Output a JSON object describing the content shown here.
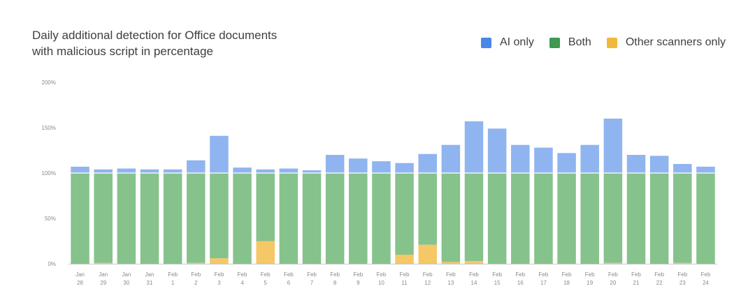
{
  "chart_data": {
    "type": "bar",
    "stacked": true,
    "title_lines": [
      "Daily additional detection for Office documents",
      "with malicious script in percentage"
    ],
    "xlabel": "",
    "ylabel": "",
    "ylim": [
      0,
      200
    ],
    "y_ticks": [
      "0%",
      "50%",
      "100%",
      "150%",
      "200%"
    ],
    "y_tick_values": [
      0,
      50,
      100,
      150,
      200
    ],
    "grid": false,
    "legend_position": "top-right",
    "categories": [
      [
        "Jan",
        "28"
      ],
      [
        "Jan",
        "29"
      ],
      [
        "Jan",
        "30"
      ],
      [
        "Jan",
        "31"
      ],
      [
        "Feb",
        "1"
      ],
      [
        "Feb",
        "2"
      ],
      [
        "Feb",
        "3"
      ],
      [
        "Feb",
        "4"
      ],
      [
        "Feb",
        "5"
      ],
      [
        "Feb",
        "6"
      ],
      [
        "Feb",
        "7"
      ],
      [
        "Feb",
        "8"
      ],
      [
        "Feb",
        "9"
      ],
      [
        "Feb",
        "10"
      ],
      [
        "Feb",
        "11"
      ],
      [
        "Feb",
        "12"
      ],
      [
        "Feb",
        "13"
      ],
      [
        "Feb",
        "14"
      ],
      [
        "Feb",
        "15"
      ],
      [
        "Feb",
        "16"
      ],
      [
        "Feb",
        "17"
      ],
      [
        "Feb",
        "18"
      ],
      [
        "Feb",
        "19"
      ],
      [
        "Feb",
        "20"
      ],
      [
        "Feb",
        "21"
      ],
      [
        "Feb",
        "22"
      ],
      [
        "Feb",
        "23"
      ],
      [
        "Feb",
        "24"
      ]
    ],
    "series": [
      {
        "name": "Other scanners only",
        "color": "#f5c767",
        "values": [
          0,
          1,
          0,
          0,
          0,
          1,
          6,
          0,
          25,
          0,
          0,
          0,
          0,
          0,
          10,
          21,
          2,
          3,
          0,
          0,
          0,
          0,
          0,
          1,
          0,
          0,
          1,
          0
        ]
      },
      {
        "name": "Both",
        "color": "#86c28b",
        "values": [
          100,
          99,
          100,
          100,
          100,
          99,
          94,
          100,
          75,
          100,
          100,
          100,
          100,
          100,
          90,
          79,
          98,
          97,
          100,
          100,
          100,
          100,
          100,
          99,
          100,
          100,
          99,
          100
        ]
      },
      {
        "name": "AI only",
        "color": "#8fb4f0",
        "values": [
          7,
          4,
          5,
          4,
          4,
          14,
          41,
          6,
          4,
          5,
          3,
          20,
          16,
          13,
          11,
          21,
          31,
          57,
          49,
          31,
          28,
          22,
          31,
          60,
          20,
          19,
          10,
          7
        ]
      }
    ]
  },
  "legend": [
    {
      "label": "AI only",
      "color": "#4a86e8"
    },
    {
      "label": "Both",
      "color": "#3d9a50"
    },
    {
      "label": "Other scanners only",
      "color": "#f0b83d"
    }
  ]
}
